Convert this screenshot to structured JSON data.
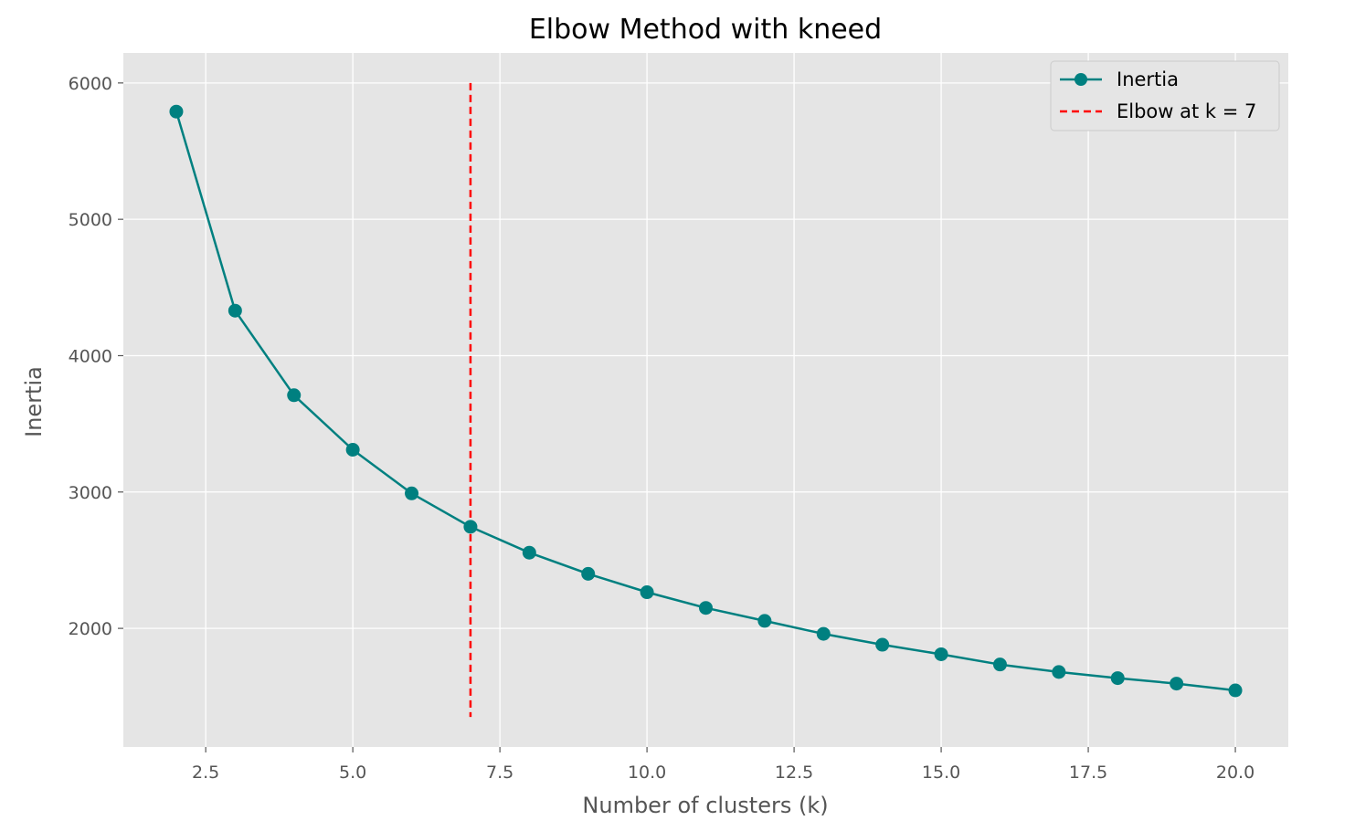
{
  "chart_data": {
    "type": "line",
    "title": "Elbow Method with kneed",
    "xlabel": "Number of clusters (k)",
    "ylabel": "Inertia",
    "xlim": [
      1.1,
      20.9
    ],
    "ylim": [
      1130,
      6220
    ],
    "xticks": [
      2.5,
      5.0,
      7.5,
      10.0,
      12.5,
      15.0,
      17.5,
      20.0
    ],
    "xtick_labels": [
      "2.5",
      "5.0",
      "7.5",
      "10.0",
      "12.5",
      "15.0",
      "17.5",
      "20.0"
    ],
    "yticks": [
      2000,
      3000,
      4000,
      5000,
      6000
    ],
    "ytick_labels": [
      "2000",
      "3000",
      "4000",
      "5000",
      "6000"
    ],
    "grid": true,
    "legend_position": "top-right",
    "series": [
      {
        "name": "Inertia",
        "color": "#008080",
        "marker": "circle",
        "x": [
          2,
          3,
          4,
          5,
          6,
          7,
          8,
          9,
          10,
          11,
          12,
          13,
          14,
          15,
          16,
          17,
          18,
          19,
          20
        ],
        "y": [
          5790,
          4330,
          3710,
          3310,
          2990,
          2745,
          2555,
          2400,
          2265,
          2150,
          2055,
          1960,
          1880,
          1810,
          1735,
          1680,
          1635,
          1595,
          1545
        ]
      }
    ],
    "vline": {
      "name": "Elbow at k = 7",
      "x": 7,
      "y_range": [
        1350,
        6000
      ],
      "color": "#ff0000",
      "style": "dashed"
    }
  },
  "colors": {
    "plot_background": "#e5e5e5",
    "grid": "#ffffff"
  }
}
